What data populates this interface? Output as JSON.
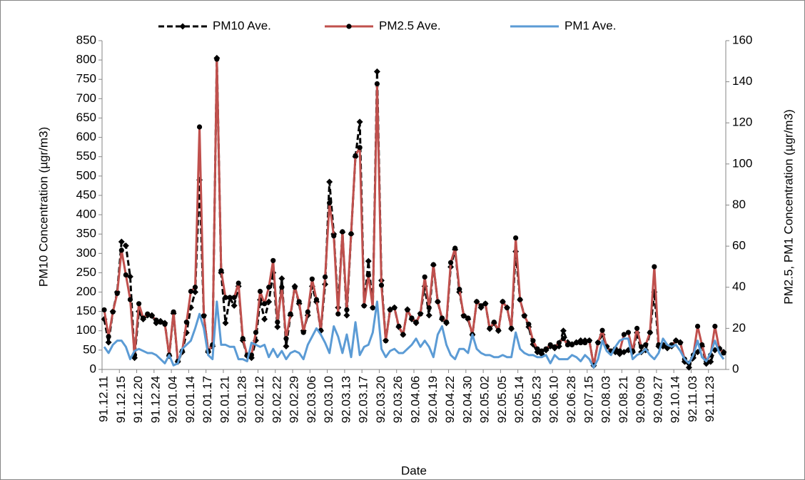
{
  "chart_data": {
    "type": "line",
    "x_label": "Date",
    "y_label": "PM10 Concentration (µgr/m3)",
    "y2_label": "PM2.5, PM1 Concentration (µgr/m3)",
    "legend": "top",
    "categories": [
      "91.12.11",
      null,
      null,
      null,
      "91.12.15",
      null,
      null,
      null,
      "91.12.20",
      null,
      null,
      null,
      "91.12.24",
      null,
      null,
      null,
      "92.01.04",
      null,
      null,
      null,
      "92.01.14",
      null,
      null,
      null,
      "92.01.17",
      null,
      null,
      null,
      "92.01.21",
      null,
      null,
      null,
      "92.01.28",
      null,
      null,
      null,
      "92.02.12",
      null,
      null,
      null,
      "92.02.22",
      null,
      null,
      null,
      "92.02.29",
      null,
      null,
      null,
      "92.03.06",
      null,
      null,
      null,
      "92.03.10",
      null,
      null,
      null,
      "92.03.13",
      null,
      null,
      null,
      "92.03.17",
      null,
      null,
      null,
      "92.03.20",
      null,
      null,
      null,
      "92.03.26",
      null,
      null,
      null,
      "92.04.06",
      null,
      null,
      null,
      "92.04.19",
      null,
      null,
      null,
      "92.04.22",
      null,
      null,
      null,
      "92.04.30",
      null,
      null,
      null,
      "92.05.02",
      null,
      null,
      null,
      "92.05.05",
      null,
      null,
      null,
      "92.05.14",
      null,
      null,
      null,
      "92.05.23",
      null,
      null,
      null,
      "92.06.10",
      null,
      null,
      null,
      "92.06.28",
      null,
      null,
      null,
      "92.07.15",
      null,
      null,
      null,
      "92.08.03",
      null,
      null,
      null,
      "92.08.21",
      null,
      null,
      null,
      "92.09.09",
      null,
      null,
      null,
      "92.09.27",
      null,
      null,
      null,
      "92.10.14",
      null,
      null,
      null,
      "92.11.03",
      null,
      null,
      null,
      "92.11.23",
      null,
      null,
      null
    ],
    "series": [
      {
        "name": "PM10 Ave.",
        "color": "#000000",
        "line_style": "dashed",
        "marker": "diamond",
        "axis": "y",
        "values": [
          130,
          70,
          150,
          200,
          330,
          320,
          240,
          30,
          150,
          130,
          140,
          140,
          120,
          125,
          120,
          35,
          145,
          20,
          45,
          95,
          160,
          200,
          490,
          140,
          45,
          60,
          805,
          250,
          120,
          185,
          165,
          215,
          75,
          35,
          30,
          75,
          180,
          130,
          175,
          250,
          110,
          235,
          60,
          140,
          215,
          170,
          100,
          140,
          215,
          175,
          100,
          220,
          485,
          350,
          160,
          355,
          140,
          350,
          550,
          640,
          165,
          280,
          160,
          770,
          230,
          75,
          155,
          160,
          110,
          90,
          155,
          130,
          120,
          145,
          215,
          140,
          270,
          175,
          130,
          120,
          265,
          310,
          200,
          140,
          130,
          90,
          175,
          160,
          170,
          105,
          120,
          100,
          175,
          160,
          105,
          305,
          180,
          140,
          110,
          65,
          45,
          40,
          50,
          60,
          55,
          60,
          100,
          70,
          65,
          70,
          75,
          75,
          75,
          10,
          70,
          90,
          60,
          45,
          45,
          40,
          45,
          50,
          45,
          95,
          45,
          50,
          95,
          200,
          60,
          60,
          55,
          60,
          75,
          70,
          20,
          5,
          30,
          45,
          60,
          15,
          20,
          50,
          55,
          45
        ]
      },
      {
        "name": "PM2.5 Ave.",
        "color": "#c0504d",
        "line_style": "solid",
        "marker": "circle",
        "axis": "y2",
        "values": [
          29,
          16,
          28,
          37,
          58,
          46,
          34,
          7,
          32,
          25,
          27,
          26,
          24,
          23,
          22,
          7,
          28,
          4,
          9,
          23,
          38,
          40,
          118,
          26,
          9,
          12,
          151,
          48,
          35,
          35,
          35,
          42,
          15,
          7,
          7,
          18,
          38,
          32,
          40,
          53,
          23,
          40,
          15,
          27,
          40,
          33,
          18,
          28,
          44,
          34,
          19,
          45,
          81,
          65,
          27,
          67,
          29,
          66,
          104,
          108,
          31,
          46,
          30,
          139,
          41,
          14,
          29,
          30,
          21,
          17,
          29,
          25,
          23,
          27,
          45,
          30,
          51,
          33,
          25,
          23,
          52,
          59,
          39,
          26,
          25,
          17,
          33,
          31,
          32,
          20,
          23,
          19,
          33,
          30,
          20,
          64,
          34,
          26,
          22,
          14,
          10,
          9,
          10,
          12,
          11,
          13,
          15,
          12,
          12,
          13,
          13,
          13,
          14,
          2,
          13,
          19,
          11,
          9,
          10,
          9,
          17,
          18,
          9,
          20,
          11,
          12,
          18,
          50,
          12,
          12,
          11,
          12,
          14,
          13,
          5,
          3,
          7,
          21,
          12,
          4,
          7,
          21,
          10,
          8
        ]
      },
      {
        "name": "PM1 Ave.",
        "color": "#5b9bd5",
        "line_style": "solid",
        "marker": "none",
        "axis": "y2",
        "values": [
          11,
          8,
          12,
          14,
          14,
          11,
          5,
          9,
          10,
          9,
          8,
          8,
          7,
          5,
          3,
          7,
          2,
          3,
          10,
          12,
          14,
          20,
          27,
          20,
          7,
          5,
          33,
          12,
          12,
          11,
          11,
          5,
          5,
          4,
          13,
          12,
          11,
          12,
          6,
          10,
          6,
          9,
          5,
          8,
          9,
          8,
          5,
          12,
          16,
          20,
          17,
          13,
          8,
          21,
          16,
          8,
          17,
          6,
          23,
          7,
          11,
          12,
          18,
          33,
          10,
          6,
          9,
          10,
          8,
          8,
          10,
          12,
          15,
          11,
          14,
          11,
          6,
          17,
          21,
          12,
          7,
          5,
          10,
          10,
          8,
          17,
          10,
          8,
          7,
          7,
          6,
          6,
          7,
          6,
          6,
          18,
          10,
          8,
          7,
          7,
          6,
          6,
          7,
          3,
          7,
          5,
          5,
          5,
          7,
          6,
          4,
          7,
          5,
          1,
          5,
          14,
          9,
          7,
          11,
          14,
          15,
          15,
          5,
          7,
          8,
          10,
          7,
          5,
          8,
          15,
          12,
          11,
          12,
          9,
          5,
          3,
          7,
          14,
          6,
          4,
          8,
          14,
          8,
          5
        ]
      }
    ],
    "marker_color": "#000000",
    "ylim": [
      0,
      850
    ],
    "yticks": [
      0,
      50,
      100,
      150,
      200,
      250,
      300,
      350,
      400,
      450,
      500,
      550,
      600,
      650,
      700,
      750,
      800,
      850
    ],
    "y2lim": [
      0,
      160
    ],
    "y2ticks": [
      0,
      20,
      40,
      60,
      80,
      100,
      120,
      140,
      160
    ]
  }
}
